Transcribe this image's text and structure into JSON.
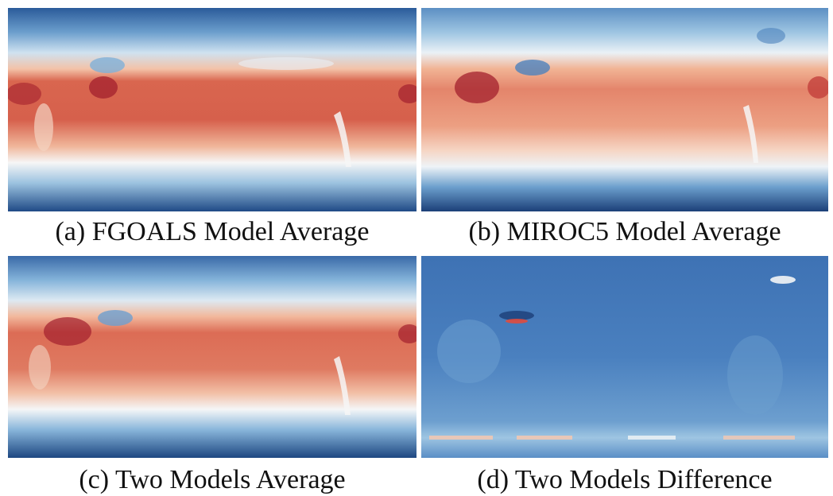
{
  "figure": {
    "panels": [
      {
        "id": "a",
        "caption": "(a) FGOALS Model Average",
        "kind": "temperature"
      },
      {
        "id": "b",
        "caption": "(b) MIROC5 Model Average",
        "kind": "temperature"
      },
      {
        "id": "c",
        "caption": "(c) Two Models Average",
        "kind": "temperature"
      },
      {
        "id": "d",
        "caption": "(d) Two Models Difference",
        "kind": "difference"
      }
    ],
    "colormap": {
      "deep_blue": "#1f4e8c",
      "blue": "#3f74b5",
      "light_blue": "#9ec5e2",
      "white": "#f4f7f8",
      "light_red": "#f2b79b",
      "red": "#d9644f",
      "dark_red": "#a3202d"
    }
  }
}
